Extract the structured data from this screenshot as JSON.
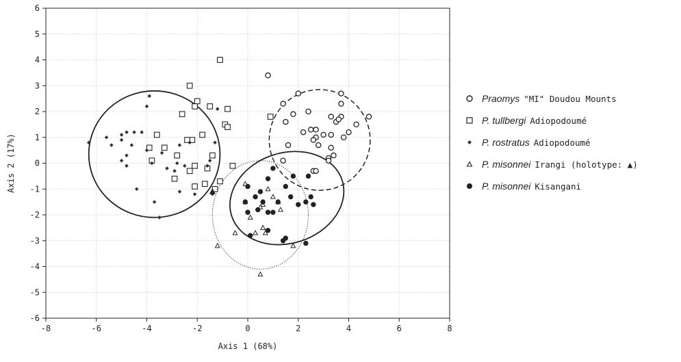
{
  "chart_data": {
    "type": "scatter",
    "title": "",
    "xlabel": "Axis 1 (68%)",
    "ylabel": "Axis 2 (17%)",
    "xlim": [
      -8,
      8
    ],
    "ylim": [
      -6,
      6
    ],
    "xticks": [
      -8,
      -6,
      -4,
      -2,
      0,
      2,
      4,
      6,
      8
    ],
    "yticks": [
      6,
      5,
      4,
      3,
      2,
      1,
      0,
      -1,
      -2,
      -3,
      -4,
      -5,
      -6
    ],
    "grid": true,
    "legend_position": "right",
    "series": [
      {
        "name": "Praomys \"MI\" Doudou Mounts",
        "species": "Praomys",
        "locality": "\"MI\" Doudou Mounts",
        "marker": "open-circle",
        "points": [
          [
            0.8,
            3.4
          ],
          [
            2.0,
            2.7
          ],
          [
            3.7,
            2.7
          ],
          [
            1.4,
            2.3
          ],
          [
            3.7,
            2.3
          ],
          [
            4.8,
            1.8
          ],
          [
            1.8,
            1.9
          ],
          [
            2.4,
            2.0
          ],
          [
            1.5,
            1.6
          ],
          [
            3.3,
            1.8
          ],
          [
            3.5,
            1.6
          ],
          [
            3.7,
            1.8
          ],
          [
            3.6,
            1.7
          ],
          [
            4.3,
            1.5
          ],
          [
            2.7,
            1.3
          ],
          [
            2.5,
            1.3
          ],
          [
            2.2,
            1.2
          ],
          [
            3.0,
            1.1
          ],
          [
            3.3,
            1.1
          ],
          [
            4.0,
            1.2
          ],
          [
            2.7,
            1.0
          ],
          [
            3.8,
            1.0
          ],
          [
            2.6,
            0.9
          ],
          [
            2.8,
            0.7
          ],
          [
            3.3,
            0.6
          ],
          [
            3.4,
            0.3
          ],
          [
            1.6,
            0.7
          ],
          [
            1.4,
            0.1
          ],
          [
            3.2,
            0.2
          ],
          [
            3.2,
            0.1
          ],
          [
            2.6,
            -0.3
          ],
          [
            2.7,
            -0.3
          ]
        ],
        "ellipse": {
          "center": [
            2.85,
            0.9
          ],
          "rx": 2.0,
          "ry": 1.95,
          "angle": 0,
          "style": "dashed"
        }
      },
      {
        "name": "P. tullbergi Adiopodoumé",
        "species": "P. tullbergi",
        "locality": "Adiopodoumé",
        "marker": "open-square",
        "points": [
          [
            -1.1,
            4.0
          ],
          [
            -2.3,
            3.0
          ],
          [
            -2.0,
            2.4
          ],
          [
            -2.1,
            2.2
          ],
          [
            -1.5,
            2.2
          ],
          [
            -0.8,
            2.1
          ],
          [
            -2.6,
            1.9
          ],
          [
            -0.9,
            1.5
          ],
          [
            -0.8,
            1.4
          ],
          [
            0.9,
            1.8
          ],
          [
            -3.6,
            1.1
          ],
          [
            -1.8,
            1.1
          ],
          [
            -2.2,
            0.9
          ],
          [
            -2.4,
            0.9
          ],
          [
            -3.9,
            0.6
          ],
          [
            -3.3,
            0.6
          ],
          [
            -1.4,
            0.3
          ],
          [
            -2.8,
            0.3
          ],
          [
            -3.8,
            0.1
          ],
          [
            -2.1,
            -0.1
          ],
          [
            -0.6,
            -0.1
          ],
          [
            -1.6,
            -0.2
          ],
          [
            -2.3,
            -0.3
          ],
          [
            -2.1,
            -0.9
          ],
          [
            -2.9,
            -0.6
          ],
          [
            -1.1,
            -0.7
          ],
          [
            -1.7,
            -0.8
          ],
          [
            -1.3,
            -1.0
          ]
        ]
      },
      {
        "name": "P. rostratus Adiopodoumé",
        "species": "P. rostratus",
        "locality": "Adiopodoumé",
        "marker": "small-diamond",
        "points": [
          [
            -3.9,
            2.6
          ],
          [
            -4.0,
            2.2
          ],
          [
            -1.2,
            2.1
          ],
          [
            -6.3,
            0.8
          ],
          [
            -5.6,
            1.0
          ],
          [
            -5.0,
            1.1
          ],
          [
            -4.8,
            1.2
          ],
          [
            -4.5,
            1.2
          ],
          [
            -4.2,
            1.2
          ],
          [
            -5.0,
            0.9
          ],
          [
            -5.4,
            0.7
          ],
          [
            -4.6,
            0.7
          ],
          [
            -4.0,
            0.5
          ],
          [
            -3.4,
            0.4
          ],
          [
            -2.7,
            0.7
          ],
          [
            -2.3,
            0.8
          ],
          [
            -1.3,
            0.8
          ],
          [
            -4.8,
            0.3
          ],
          [
            -5.0,
            0.1
          ],
          [
            -4.8,
            -0.1
          ],
          [
            -3.8,
            0.0
          ],
          [
            -2.8,
            0.0
          ],
          [
            -2.5,
            -0.1
          ],
          [
            -1.5,
            0.1
          ],
          [
            -1.6,
            -0.1
          ],
          [
            -3.2,
            -0.2
          ],
          [
            -2.9,
            -0.3
          ],
          [
            -4.4,
            -1.0
          ],
          [
            -2.7,
            -1.1
          ],
          [
            -2.1,
            -1.2
          ],
          [
            -1.4,
            -1.2
          ],
          [
            -3.7,
            -1.5
          ],
          [
            -3.5,
            -2.1
          ]
        ],
        "ellipse": {
          "center": [
            -3.7,
            0.35
          ],
          "rx": 2.6,
          "ry": 2.45,
          "angle": 0,
          "style": "solid"
        }
      },
      {
        "name": "P. misonnei Irangi (holotype: ▲)",
        "species": "P. misonnei",
        "locality": "Irangi",
        "note": "(holotype: ▲)",
        "marker": "open-triangle",
        "points": [
          [
            -0.1,
            -0.8
          ],
          [
            0.8,
            -1.0
          ],
          [
            1.0,
            -1.3
          ],
          [
            1.2,
            -1.5
          ],
          [
            -0.1,
            -1.5
          ],
          [
            0.6,
            -1.6
          ],
          [
            1.3,
            -1.8
          ],
          [
            0.5,
            -1.7
          ],
          [
            0.1,
            -2.1
          ],
          [
            -0.5,
            -2.7
          ],
          [
            0.3,
            -2.7
          ],
          [
            0.7,
            -2.7
          ],
          [
            0.6,
            -2.5
          ],
          [
            -1.2,
            -3.2
          ],
          [
            1.8,
            -3.2
          ],
          [
            0.5,
            -4.3
          ]
        ],
        "holotype": [
          -1.4,
          -1.1
        ],
        "ellipse": {
          "center": [
            0.5,
            -2.0
          ],
          "rx": 1.9,
          "ry": 2.1,
          "angle": 0,
          "style": "dotted"
        }
      },
      {
        "name": "P. misonnei Kisangani",
        "species": "P. misonnei",
        "locality": "Kisangani",
        "marker": "filled-circle",
        "points": [
          [
            1.0,
            -0.2
          ],
          [
            1.8,
            -0.5
          ],
          [
            2.4,
            -0.5
          ],
          [
            0.8,
            -0.6
          ],
          [
            1.5,
            -0.9
          ],
          [
            0.0,
            -0.9
          ],
          [
            0.5,
            -1.1
          ],
          [
            0.3,
            -1.3
          ],
          [
            1.7,
            -1.3
          ],
          [
            2.5,
            -1.3
          ],
          [
            -0.1,
            -1.5
          ],
          [
            0.6,
            -1.5
          ],
          [
            1.2,
            -1.5
          ],
          [
            2.0,
            -1.6
          ],
          [
            2.3,
            -1.5
          ],
          [
            2.6,
            -1.6
          ],
          [
            0.0,
            -1.9
          ],
          [
            0.4,
            -1.8
          ],
          [
            0.8,
            -1.9
          ],
          [
            1.0,
            -1.9
          ],
          [
            0.8,
            -2.6
          ],
          [
            0.1,
            -2.8
          ],
          [
            1.5,
            -2.9
          ],
          [
            1.4,
            -3.0
          ],
          [
            2.3,
            -3.1
          ]
        ],
        "ellipse": {
          "center": [
            1.55,
            -1.35
          ],
          "rx": 2.3,
          "ry": 1.75,
          "angle": -18,
          "style": "solid"
        }
      }
    ]
  },
  "legend": {
    "items": [
      {
        "species": "Praomys",
        "locality": "\"MI\" Doudou Mounts"
      },
      {
        "species": "P. tullbergi",
        "locality": "Adiopodoumé"
      },
      {
        "species": "P. rostratus",
        "locality": "Adiopodoumé"
      },
      {
        "species": "P. misonnei",
        "locality": "Irangi (holotype: ▲)"
      },
      {
        "species": "P. misonnei",
        "locality": "Kisangani"
      }
    ]
  }
}
